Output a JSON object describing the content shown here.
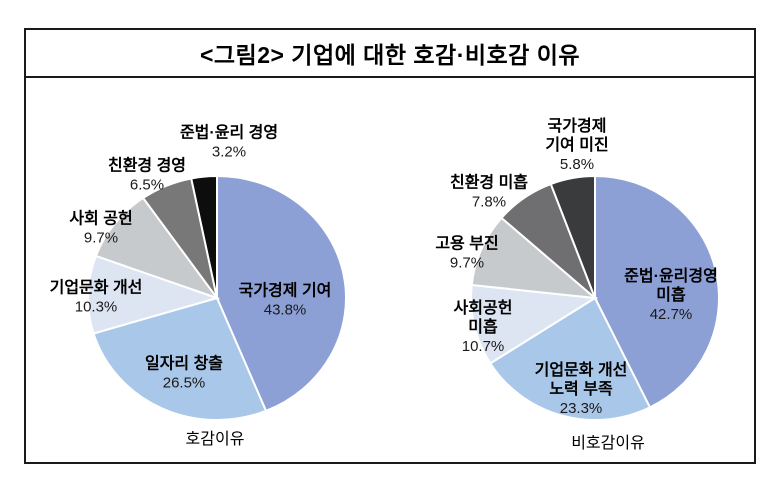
{
  "header": {
    "title": "<그림2> 기업에 대한 호감·비호감 이유"
  },
  "chart_data": [
    {
      "type": "pie",
      "title": "호감이유",
      "start": "top",
      "direction": "clockwise",
      "unit": "%",
      "slices": [
        {
          "label": "국가경제 기여",
          "lines": [
            "국가경제 기여"
          ],
          "value": 43.8,
          "color": "#8CA0D6",
          "label_position": "inside"
        },
        {
          "label": "일자리 창출",
          "lines": [
            "일자리 창출"
          ],
          "value": 26.5,
          "color": "#A9C7E8",
          "label_position": "inside"
        },
        {
          "label": "기업문화 개선",
          "lines": [
            "기업문화 개선"
          ],
          "value": 10.3,
          "color": "#DDE5F3",
          "label_position": "outside"
        },
        {
          "label": "사회 공헌",
          "lines": [
            "사회 공헌"
          ],
          "value": 9.7,
          "color": "#C7CACC",
          "label_position": "outside"
        },
        {
          "label": "친환경 경영",
          "lines": [
            "친환경 경영"
          ],
          "value": 6.5,
          "color": "#787879",
          "label_position": "outside"
        },
        {
          "label": "준법·윤리 경영",
          "lines": [
            "준법·윤리 경영"
          ],
          "value": 3.2,
          "color": "#0D0D0D",
          "label_position": "outside"
        }
      ]
    },
    {
      "type": "pie",
      "title": "비호감이유",
      "start": "top",
      "direction": "clockwise",
      "unit": "%",
      "slices": [
        {
          "label": "준법·윤리경영 미흡",
          "lines": [
            "준법·윤리경영",
            "미흡"
          ],
          "value": 42.7,
          "color": "#8CA0D6",
          "label_position": "inside"
        },
        {
          "label": "기업문화 개선 노력 부족",
          "lines": [
            "기업문화 개선",
            "노력 부족"
          ],
          "value": 23.3,
          "color": "#A9C7E8",
          "label_position": "inside"
        },
        {
          "label": "사회공헌 미흡",
          "lines": [
            "사회공헌",
            "미흡"
          ],
          "value": 10.7,
          "color": "#DDE5F3",
          "label_position": "outside"
        },
        {
          "label": "고용 부진",
          "lines": [
            "고용 부진"
          ],
          "value": 9.7,
          "color": "#C7CACC",
          "label_position": "outside"
        },
        {
          "label": "친환경 미흡",
          "lines": [
            "친환경 미흡"
          ],
          "value": 7.8,
          "color": "#6F6F71",
          "label_position": "outside"
        },
        {
          "label": "국가경제 기여 미진",
          "lines": [
            "국가경제",
            "기여 미진"
          ],
          "value": 5.8,
          "color": "#3A3B3D",
          "label_position": "outside"
        }
      ]
    }
  ]
}
